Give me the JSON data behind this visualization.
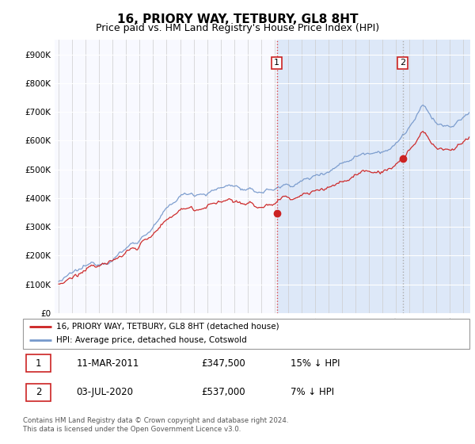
{
  "title": "16, PRIORY WAY, TETBURY, GL8 8HT",
  "subtitle": "Price paid vs. HM Land Registry's House Price Index (HPI)",
  "ylim": [
    0,
    950000
  ],
  "yticks": [
    0,
    100000,
    200000,
    300000,
    400000,
    500000,
    600000,
    700000,
    800000,
    900000
  ],
  "ytick_labels": [
    "£0",
    "£100K",
    "£200K",
    "£300K",
    "£400K",
    "£500K",
    "£600K",
    "£700K",
    "£800K",
    "£900K"
  ],
  "hpi_color": "#7799cc",
  "price_color": "#cc2222",
  "plot_bg": "#f8f9ff",
  "highlight_bg": "#dde8f8",
  "vline_color": "#dd4444",
  "marker1_price": 347500,
  "marker2_price": 537000,
  "marker1_label": "1",
  "marker2_label": "2",
  "legend_label_red": "16, PRIORY WAY, TETBURY, GL8 8HT (detached house)",
  "legend_label_blue": "HPI: Average price, detached house, Cotswold",
  "table_row1": [
    "1",
    "11-MAR-2011",
    "£347,500",
    "15% ↓ HPI"
  ],
  "table_row2": [
    "2",
    "03-JUL-2020",
    "£537,000",
    "7% ↓ HPI"
  ],
  "footer": "Contains HM Land Registry data © Crown copyright and database right 2024.\nThis data is licensed under the Open Government Licence v3.0.",
  "title_fontsize": 11,
  "subtitle_fontsize": 9,
  "xstart_year": 1995,
  "xend_year": 2025
}
